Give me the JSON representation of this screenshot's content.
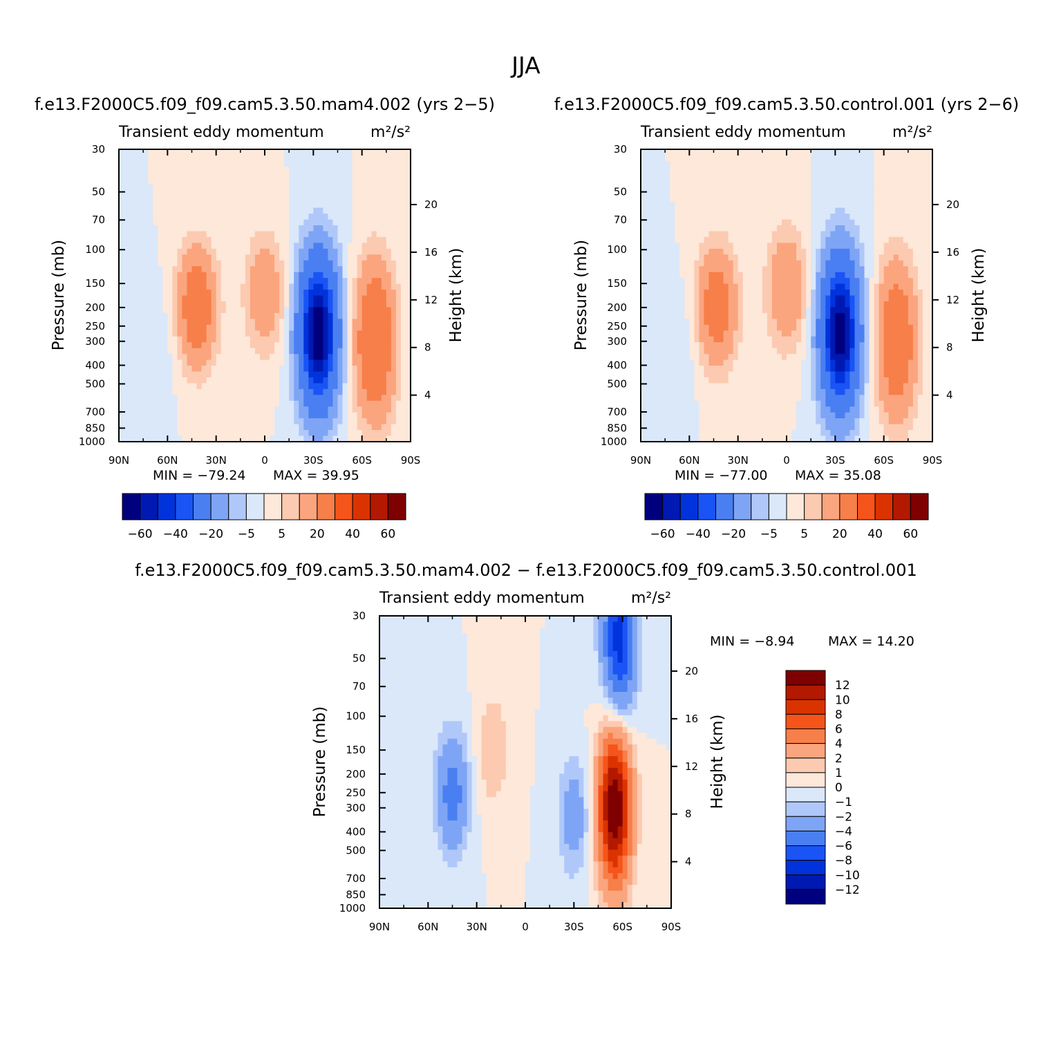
{
  "figure": {
    "title": "JJA"
  },
  "colors": {
    "diverging": [
      "#00007f",
      "#0019b2",
      "#0033db",
      "#1a54f5",
      "#4a7ff2",
      "#7ea5f5",
      "#b0c8f9",
      "#dae8fa",
      "#fde8da",
      "#fccab0",
      "#fba57e",
      "#f77f4a",
      "#f5541a",
      "#db3300",
      "#b21900",
      "#7f0000"
    ]
  },
  "chart_data": [
    {
      "type": "heatmap",
      "id": "mam4",
      "title": "f.e13.F2000C5.f09_f09.cam5.3.50.mam4.002 (yrs 2−5)",
      "left_string": "Transient eddy momentum",
      "right_string": "m²/s²",
      "xlabel": "",
      "ylabel": "Pressure (mb)",
      "ylabel_right": "Height (km)",
      "x_ticks": [
        "90N",
        "60N",
        "30N",
        "0",
        "30S",
        "60S",
        "90S"
      ],
      "x_values": [
        90,
        60,
        30,
        0,
        -30,
        -60,
        -90
      ],
      "xlim": [
        90,
        -90
      ],
      "y_ticks": [
        30,
        50,
        70,
        100,
        150,
        200,
        250,
        300,
        400,
        500,
        700,
        850,
        1000
      ],
      "ylim": [
        1000,
        30
      ],
      "y_scale": "log",
      "height_ticks": [
        4,
        8,
        12,
        16,
        20
      ],
      "min_text": "MIN = −79.24",
      "max_text": "MAX =   39.95",
      "min": -79.24,
      "max": 39.95,
      "contour_levels": [
        -70,
        -60,
        -50,
        -40,
        -30,
        -20,
        -10,
        -5,
        0,
        5,
        10,
        20,
        30,
        40,
        50,
        60,
        70
      ],
      "colorbar_labels": [
        "−60",
        "−40",
        "−20",
        "−5",
        "5",
        "20",
        "40",
        "60"
      ],
      "features": [
        {
          "lat": -33,
          "p": 270,
          "value": -79.24
        },
        {
          "lat": -68,
          "p": 300,
          "value": 39.95
        },
        {
          "lat": 42,
          "p": 200,
          "value": 32
        },
        {
          "lat": 0,
          "p": 170,
          "value": 18
        },
        {
          "lat": 62,
          "p": 300,
          "value": -3
        }
      ]
    },
    {
      "type": "heatmap",
      "id": "control",
      "title": "f.e13.F2000C5.f09_f09.cam5.3.50.control.001 (yrs 2−6)",
      "left_string": "Transient eddy momentum",
      "right_string": "m²/s²",
      "xlabel": "",
      "ylabel": "Pressure (mb)",
      "ylabel_right": "Height (km)",
      "x_ticks": [
        "90N",
        "60N",
        "30N",
        "0",
        "30S",
        "60S",
        "90S"
      ],
      "x_values": [
        90,
        60,
        30,
        0,
        -30,
        -60,
        -90
      ],
      "xlim": [
        90,
        -90
      ],
      "y_ticks": [
        30,
        50,
        70,
        100,
        150,
        200,
        250,
        300,
        400,
        500,
        700,
        850,
        1000
      ],
      "ylim": [
        1000,
        30
      ],
      "y_scale": "log",
      "height_ticks": [
        4,
        8,
        12,
        16,
        20
      ],
      "min_text": "MIN = −77.00",
      "max_text": "MAX =   35.08",
      "min": -77.0,
      "max": 35.08,
      "contour_levels": [
        -70,
        -60,
        -50,
        -40,
        -30,
        -20,
        -10,
        -5,
        0,
        5,
        10,
        20,
        30,
        40,
        50,
        60,
        70
      ],
      "colorbar_labels": [
        "−60",
        "−40",
        "−20",
        "−5",
        "5",
        "20",
        "40",
        "60"
      ],
      "features": [
        {
          "lat": -33,
          "p": 270,
          "value": -77.0
        },
        {
          "lat": -68,
          "p": 300,
          "value": 35.08
        },
        {
          "lat": 43,
          "p": 200,
          "value": 30
        },
        {
          "lat": 0,
          "p": 160,
          "value": 20
        },
        {
          "lat": 62,
          "p": 300,
          "value": -3
        }
      ]
    },
    {
      "type": "heatmap",
      "id": "difference",
      "title": "f.e13.F2000C5.f09_f09.cam5.3.50.mam4.002 − f.e13.F2000C5.f09_f09.cam5.3.50.control.001",
      "left_string": "Transient eddy momentum",
      "right_string": "m²/s²",
      "xlabel": "",
      "ylabel": "Pressure (mb)",
      "ylabel_right": "Height (km)",
      "x_ticks": [
        "90N",
        "60N",
        "30N",
        "0",
        "30S",
        "60S",
        "90S"
      ],
      "x_values": [
        90,
        60,
        30,
        0,
        -30,
        -60,
        -90
      ],
      "xlim": [
        90,
        -90
      ],
      "y_ticks": [
        30,
        50,
        70,
        100,
        150,
        200,
        250,
        300,
        400,
        500,
        700,
        850,
        1000
      ],
      "ylim": [
        1000,
        30
      ],
      "y_scale": "log",
      "height_ticks": [
        4,
        8,
        12,
        16,
        20
      ],
      "min_text": "MIN =   −8.94",
      "max_text": "MAX =   14.20",
      "min": -8.94,
      "max": 14.2,
      "contour_levels": [
        -12,
        -10,
        -8,
        -6,
        -4,
        -2,
        -1,
        0,
        1,
        2,
        4,
        6,
        8,
        10,
        12
      ],
      "colorbar_labels": [
        "12",
        "10",
        "8",
        "6",
        "4",
        "2",
        "1",
        "0",
        "−1",
        "−2",
        "−4",
        "−6",
        "−8",
        "−10",
        "−12"
      ],
      "features": [
        {
          "lat": -55,
          "p": 300,
          "value": 14.2
        },
        {
          "lat": -58,
          "p": 40,
          "value": -8.94
        },
        {
          "lat": 45,
          "p": 250,
          "value": -5
        },
        {
          "lat": 20,
          "p": 150,
          "value": 2
        },
        {
          "lat": -30,
          "p": 330,
          "value": -3
        }
      ]
    }
  ]
}
